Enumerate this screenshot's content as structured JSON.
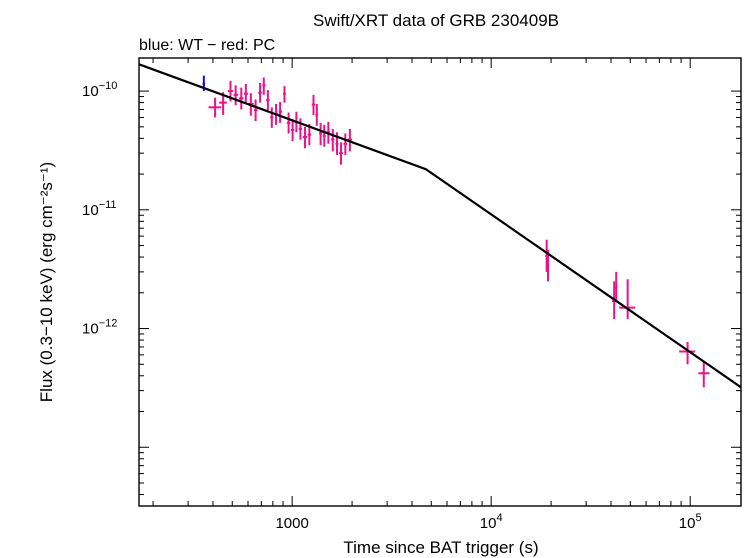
{
  "chart_data": {
    "type": "scatter",
    "title": "Swift/XRT data of GRB 230409B",
    "subtitle": "blue: WT − red: PC",
    "xlabel": "Time since BAT trigger (s)",
    "ylabel": "Flux (0.3−10 keV) (erg cm⁻²s⁻¹)",
    "x_scale": "log",
    "y_scale": "log",
    "xlim": [
      170,
      180000
    ],
    "ylim": [
      3.2e-14,
      1.9e-10
    ],
    "x_ticks": [
      {
        "value": 1000,
        "label": "1000"
      },
      {
        "value": 10000,
        "base": "10",
        "exp": "4"
      },
      {
        "value": 100000,
        "base": "10",
        "exp": "5"
      }
    ],
    "y_ticks": [
      {
        "value": 1e-10,
        "base": "10",
        "exp": "−10"
      },
      {
        "value": 1e-11,
        "base": "10",
        "exp": "−11"
      },
      {
        "value": 1e-12,
        "base": "10",
        "exp": "−12"
      }
    ],
    "colors": {
      "wt": "#1010d0",
      "pc": "#ee1188",
      "model": "#000000"
    },
    "series": [
      {
        "key": "wt",
        "points": [
          {
            "x": 360,
            "xlo": 355,
            "xhi": 365,
            "y": 1.15e-10,
            "ylo": 1e-10,
            "yhi": 1.35e-10
          }
        ]
      },
      {
        "key": "pc",
        "points": [
          {
            "x": 410,
            "xlo": 380,
            "xhi": 440,
            "y": 7.3e-11,
            "ylo": 6e-11,
            "yhi": 8.8e-11
          },
          {
            "x": 450,
            "xlo": 430,
            "xhi": 470,
            "y": 8e-11,
            "ylo": 6.3e-11,
            "yhi": 9.8e-11
          },
          {
            "x": 490,
            "xlo": 475,
            "xhi": 505,
            "y": 1e-10,
            "ylo": 8.2e-11,
            "yhi": 1.22e-10
          },
          {
            "x": 520,
            "xlo": 508,
            "xhi": 535,
            "y": 9.3e-11,
            "ylo": 7.6e-11,
            "yhi": 1.12e-10
          },
          {
            "x": 555,
            "xlo": 540,
            "xhi": 570,
            "y": 8.7e-11,
            "ylo": 7e-11,
            "yhi": 1.07e-10
          },
          {
            "x": 585,
            "xlo": 572,
            "xhi": 600,
            "y": 9.5e-11,
            "ylo": 7.8e-11,
            "yhi": 1.15e-10
          },
          {
            "x": 620,
            "xlo": 605,
            "xhi": 640,
            "y": 7.8e-11,
            "ylo": 6.2e-11,
            "yhi": 9.6e-11
          },
          {
            "x": 655,
            "xlo": 642,
            "xhi": 670,
            "y": 6.9e-11,
            "ylo": 5.6e-11,
            "yhi": 8.5e-11
          },
          {
            "x": 690,
            "xlo": 675,
            "xhi": 705,
            "y": 9.7e-11,
            "ylo": 8e-11,
            "yhi": 1.17e-10
          },
          {
            "x": 720,
            "xlo": 708,
            "xhi": 735,
            "y": 1.12e-10,
            "ylo": 9.3e-11,
            "yhi": 1.3e-10
          },
          {
            "x": 755,
            "xlo": 740,
            "xhi": 770,
            "y": 8.4e-11,
            "ylo": 6.9e-11,
            "yhi": 1.02e-10
          },
          {
            "x": 790,
            "xlo": 775,
            "xhi": 805,
            "y": 6e-11,
            "ylo": 4.9e-11,
            "yhi": 7.3e-11
          },
          {
            "x": 830,
            "xlo": 812,
            "xhi": 850,
            "y": 6.4e-11,
            "ylo": 5.2e-11,
            "yhi": 7.8e-11
          },
          {
            "x": 870,
            "xlo": 855,
            "xhi": 890,
            "y": 6.7e-11,
            "ylo": 5.4e-11,
            "yhi": 8.1e-11
          },
          {
            "x": 915,
            "xlo": 900,
            "xhi": 930,
            "y": 9.5e-11,
            "ylo": 8e-11,
            "yhi": 1.1e-10
          },
          {
            "x": 960,
            "xlo": 940,
            "xhi": 980,
            "y": 5.4e-11,
            "ylo": 4.4e-11,
            "yhi": 6.6e-11
          },
          {
            "x": 1005,
            "xlo": 985,
            "xhi": 1025,
            "y": 4.7e-11,
            "ylo": 3.8e-11,
            "yhi": 5.8e-11
          },
          {
            "x": 1050,
            "xlo": 1030,
            "xhi": 1070,
            "y": 5.5e-11,
            "ylo": 4.5e-11,
            "yhi": 6.7e-11
          },
          {
            "x": 1100,
            "xlo": 1080,
            "xhi": 1120,
            "y": 4.8e-11,
            "ylo": 3.9e-11,
            "yhi": 5.9e-11
          },
          {
            "x": 1160,
            "xlo": 1130,
            "xhi": 1190,
            "y": 4.1e-11,
            "ylo": 3.3e-11,
            "yhi": 5e-11
          },
          {
            "x": 1220,
            "xlo": 1195,
            "xhi": 1245,
            "y": 4.3e-11,
            "ylo": 3.5e-11,
            "yhi": 5.3e-11
          },
          {
            "x": 1280,
            "xlo": 1255,
            "xhi": 1305,
            "y": 7.7e-11,
            "ylo": 6.3e-11,
            "yhi": 9.3e-11
          },
          {
            "x": 1330,
            "xlo": 1310,
            "xhi": 1350,
            "y": 6.3e-11,
            "ylo": 5.1e-11,
            "yhi": 7.8e-11
          },
          {
            "x": 1390,
            "xlo": 1365,
            "xhi": 1415,
            "y": 4.4e-11,
            "ylo": 3.5e-11,
            "yhi": 5.4e-11
          },
          {
            "x": 1450,
            "xlo": 1425,
            "xhi": 1475,
            "y": 4.2e-11,
            "ylo": 3.4e-11,
            "yhi": 5.2e-11
          },
          {
            "x": 1520,
            "xlo": 1490,
            "xhi": 1550,
            "y": 4.5e-11,
            "ylo": 3.6e-11,
            "yhi": 5.5e-11
          },
          {
            "x": 1600,
            "xlo": 1570,
            "xhi": 1630,
            "y": 3.9e-11,
            "ylo": 3.1e-11,
            "yhi": 4.8e-11
          },
          {
            "x": 1680,
            "xlo": 1650,
            "xhi": 1710,
            "y": 3.6e-11,
            "ylo": 2.9e-11,
            "yhi": 4.5e-11
          },
          {
            "x": 1760,
            "xlo": 1720,
            "xhi": 1800,
            "y": 3e-11,
            "ylo": 2.4e-11,
            "yhi": 3.7e-11
          },
          {
            "x": 1850,
            "xlo": 1810,
            "xhi": 1890,
            "y": 3.6e-11,
            "ylo": 2.9e-11,
            "yhi": 4.4e-11
          },
          {
            "x": 1950,
            "xlo": 1900,
            "xhi": 2000,
            "y": 3.9e-11,
            "ylo": 3.1e-11,
            "yhi": 4.8e-11
          },
          {
            "x": 19000,
            "xlo": 18700,
            "xhi": 19300,
            "y": 4.1e-12,
            "ylo": 3e-12,
            "yhi": 5.6e-12
          },
          {
            "x": 19300,
            "xlo": 19000,
            "xhi": 19600,
            "y": 3.4e-12,
            "ylo": 2.5e-12,
            "yhi": 4.6e-12
          },
          {
            "x": 41500,
            "xlo": 40500,
            "xhi": 42500,
            "y": 1.7e-12,
            "ylo": 1.2e-12,
            "yhi": 2.5e-12
          },
          {
            "x": 42500,
            "xlo": 42000,
            "xhi": 43000,
            "y": 2.2e-12,
            "ylo": 1.7e-12,
            "yhi": 3e-12
          },
          {
            "x": 48500,
            "xlo": 44000,
            "xhi": 53000,
            "y": 1.5e-12,
            "ylo": 1.2e-12,
            "yhi": 2.6e-12
          },
          {
            "x": 97000,
            "xlo": 88000,
            "xhi": 106000,
            "y": 6.4e-13,
            "ylo": 5e-13,
            "yhi": 7.7e-13
          },
          {
            "x": 117000,
            "xlo": 110000,
            "xhi": 125000,
            "y": 4.2e-13,
            "ylo": 3.2e-13,
            "yhi": 5.3e-13
          }
        ]
      }
    ],
    "model": [
      {
        "x": 170,
        "y": 1.68e-10
      },
      {
        "x": 4700,
        "y": 2.2e-11
      },
      {
        "x": 180000,
        "y": 3.2e-13
      }
    ]
  }
}
